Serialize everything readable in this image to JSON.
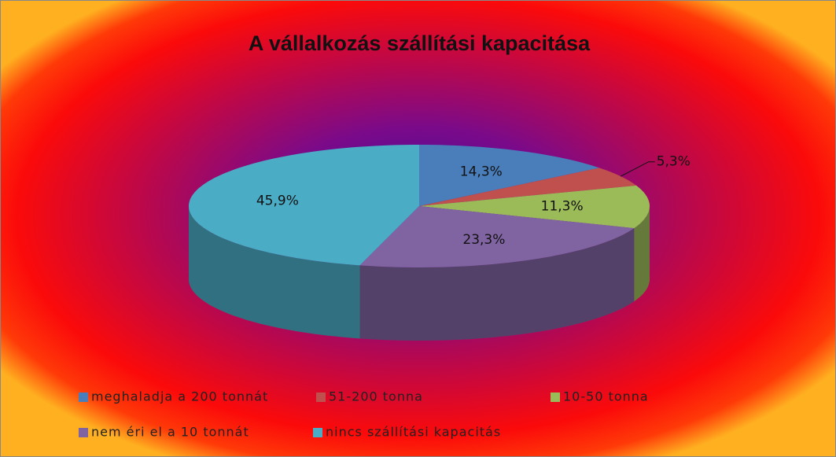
{
  "chart_data": {
    "type": "pie",
    "title": "A vállalkozás szállítási kapacitása",
    "categories": [
      "meghaladja a 200 tonnát",
      "51-200 tonna",
      "10-50 tonna",
      "nem éri el a 10 tonnát",
      "nincs szállítási kapacitás"
    ],
    "values": [
      14.3,
      5.3,
      11.3,
      23.3,
      45.9
    ],
    "value_labels": [
      "14,3%",
      "5,3%",
      "11,3%",
      "23,3%",
      "45,9%"
    ],
    "colors": [
      "#4a7ebb",
      "#c0504d",
      "#9bbb59",
      "#8064a2",
      "#4bacc6"
    ],
    "legend": "bottom"
  }
}
